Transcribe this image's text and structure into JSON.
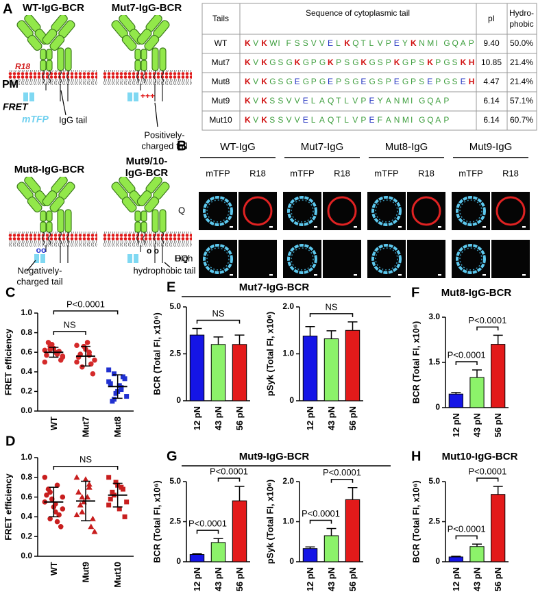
{
  "panel_a": {
    "label": "A",
    "wt": "WT-IgG-BCR",
    "mut7": "Mut7-IgG-BCR",
    "mut8": "Mut8-IgG-BCR",
    "mut910": [
      "Mut9/10-",
      "IgG-BCR"
    ],
    "r18": "R18",
    "pm": "PM",
    "fret": "FRET",
    "mtfp": "mTFP",
    "igg_tail": "IgG tail",
    "positive": [
      "Positively-",
      "charged tail"
    ],
    "negative": [
      "Negatively-",
      "charged tail"
    ],
    "hydrophobic": [
      "High",
      "hydrophobic tail"
    ]
  },
  "table": {
    "header": [
      "Tails",
      "Sequence of cytoplasmic tail",
      "pI",
      [
        "Hydro-",
        "phobic"
      ]
    ],
    "rows": [
      [
        "WT",
        "K V K W I F S S V V E L K Q T L V P E Y K N M I G Q A P",
        "9.40",
        "50.0%"
      ],
      [
        "Mut7",
        "K V K G S G K G P G K P S G K G S P K G P S K P G S K H",
        "10.85",
        "21.4%"
      ],
      [
        "Mut8",
        "K V K G S G E G P G E P S G E G S P E G P S E P G S E H",
        "4.47",
        "21.4%"
      ],
      [
        "Mut9",
        "K V K S S V V E L A Q T L V P E Y A N M I G Q A P",
        "6.14",
        "57.1%"
      ],
      [
        "Mut10",
        "K V K S S V V E L A Q T L V P E F A N M I G Q A P",
        "6.14",
        "60.7%"
      ]
    ]
  },
  "panel_b": {
    "label": "B",
    "groups": [
      "WT-IgG",
      "Mut7-IgG",
      "Mut8-IgG",
      "Mut9-IgG"
    ],
    "channels": [
      "mTFP",
      "R18"
    ],
    "rows": [
      "Q",
      "DQ"
    ]
  },
  "groups": [
    {
      "panel": "E",
      "title": "Mut7-IgG-BCR"
    },
    {
      "panel": "G",
      "title": "Mut9-IgG-BCR"
    }
  ],
  "chart_data": [
    {
      "type": "dot",
      "panel": "C",
      "ylabel": "FRET efficiency",
      "categories": [
        "WT",
        "Mut7",
        "Mut8"
      ],
      "groups": [
        {
          "values": [
            0.62,
            0.58,
            0.66,
            0.55,
            0.6,
            0.7,
            0.52,
            0.64,
            0.57,
            0.61,
            0.68,
            0.5,
            0.59,
            0.63,
            0.56
          ],
          "mean": 0.6,
          "sd": 0.05,
          "color": "#d42a2a",
          "marker": "circle"
        },
        {
          "values": [
            0.67,
            0.6,
            0.45,
            0.52,
            0.7,
            0.58,
            0.38,
            0.63,
            0.55,
            0.48,
            0.66,
            0.5,
            0.57
          ],
          "mean": 0.56,
          "sd": 0.1,
          "color": "#d42a2a",
          "marker": "circle"
        },
        {
          "values": [
            0.3,
            0.22,
            0.38,
            0.15,
            0.26,
            0.1,
            0.33,
            0.2,
            0.28,
            0.35,
            0.18,
            0.42,
            0.24,
            0.12
          ],
          "mean": 0.25,
          "sd": 0.12,
          "color": "#2030d0",
          "marker": "square"
        }
      ],
      "ylim": [
        0,
        1
      ],
      "yticks": [
        {
          "value": 0,
          "label": "0.0"
        },
        {
          "value": 0.2,
          "label": "0.2"
        },
        {
          "value": 0.4,
          "label": "0.4"
        },
        {
          "value": 0.6,
          "label": "0.6"
        },
        {
          "value": 0.8,
          "label": "0.8"
        },
        {
          "value": 1,
          "label": "1.0"
        }
      ],
      "annotations": [
        {
          "text": "NS",
          "pair": [
            "WT",
            "Mut7"
          ]
        },
        {
          "text": "P<0.0001",
          "pair": [
            "WT",
            "Mut8"
          ]
        }
      ]
    },
    {
      "type": "dot",
      "panel": "D",
      "ylabel": "FRET efficiency",
      "categories": [
        "WT",
        "Mut9",
        "Mut10"
      ],
      "groups": [
        {
          "values": [
            0.55,
            0.72,
            0.38,
            0.6,
            0.45,
            0.68,
            0.3,
            0.5,
            0.62,
            0.42,
            0.58,
            0.8,
            0.35,
            0.65,
            0.48,
            0.53
          ],
          "mean": 0.55,
          "sd": 0.15,
          "color": "#c81e1e",
          "marker": "circle"
        },
        {
          "values": [
            0.8,
            0.7,
            0.45,
            0.25,
            0.6,
            0.52,
            0.38,
            0.78,
            0.65,
            0.3,
            0.55,
            0.42,
            0.73,
            0.6
          ],
          "mean": 0.56,
          "sd": 0.2,
          "color": "#c81e1e",
          "marker": "triangle"
        },
        {
          "values": [
            0.8,
            0.7,
            0.62,
            0.55,
            0.48,
            0.65,
            0.4,
            0.72,
            0.58,
            0.68,
            0.75,
            0.52
          ],
          "mean": 0.62,
          "sd": 0.12,
          "color": "#c81e1e",
          "marker": "square"
        }
      ],
      "ylim": [
        0,
        1
      ],
      "yticks": [
        {
          "value": 0,
          "label": "0.0"
        },
        {
          "value": 0.2,
          "label": "0.2"
        },
        {
          "value": 0.4,
          "label": "0.4"
        },
        {
          "value": 0.6,
          "label": "0.6"
        },
        {
          "value": 0.8,
          "label": "0.8"
        },
        {
          "value": 1,
          "label": "1.0"
        }
      ],
      "annotations": [
        {
          "text": "NS",
          "pair": [
            "WT",
            "Mut10"
          ]
        }
      ]
    },
    {
      "type": "bar",
      "panel": "E",
      "ylabel": "BCR (Total FI, x10⁶)",
      "categories": [
        "12 pN",
        "43 pN",
        "56 pN"
      ],
      "values": [
        3.5,
        3.0,
        3.0
      ],
      "errors": [
        0.35,
        0.4,
        0.5
      ],
      "colors": [
        "#1515e6",
        "#8cf26a",
        "#e31a1a"
      ],
      "ylim": [
        0,
        5
      ],
      "yticks": [
        0,
        2.5,
        {
          "value": 5,
          "label": "5.0"
        }
      ],
      "annotations": [
        {
          "text": "NS",
          "pair": [
            "12 pN",
            "56 pN"
          ]
        }
      ]
    },
    {
      "type": "bar",
      "ylabel": "pSyk (Total FI, x10⁶)",
      "categories": [
        "12 pN",
        "43 pN",
        "56 pN"
      ],
      "values": [
        1.38,
        1.32,
        1.5
      ],
      "errors": [
        0.2,
        0.17,
        0.18
      ],
      "colors": [
        "#1515e6",
        "#8cf26a",
        "#e31a1a"
      ],
      "ylim": [
        0,
        2
      ],
      "yticks": [
        0,
        {
          "value": 1,
          "label": "1.0"
        },
        {
          "value": 2,
          "label": "2.0"
        }
      ],
      "annotations": [
        {
          "text": "NS",
          "pair": [
            "12 pN",
            "56 pN"
          ]
        }
      ]
    },
    {
      "type": "bar",
      "panel": "F",
      "title": "Mut8-IgG-BCR",
      "ylabel": "BCR (Total FI, x10⁶)",
      "categories": [
        "12 pN",
        "43 pN",
        "56 pN"
      ],
      "values": [
        0.45,
        1.0,
        2.1
      ],
      "errors": [
        0.05,
        0.25,
        0.3
      ],
      "colors": [
        "#1515e6",
        "#8cf26a",
        "#e31a1a"
      ],
      "ylim": [
        0,
        3
      ],
      "yticks": [
        0,
        1.5,
        {
          "value": 3,
          "label": "3.0"
        }
      ],
      "annotations": [
        {
          "text": "P<0.0001",
          "pair": [
            "12 pN",
            "43 pN"
          ]
        },
        {
          "text": "P<0.0001",
          "pair": [
            "43 pN",
            "56 pN"
          ]
        }
      ]
    },
    {
      "type": "bar",
      "panel": "G",
      "ylabel": "BCR (Total FI, x10⁶)",
      "categories": [
        "12 pN",
        "43 pN",
        "56 pN"
      ],
      "values": [
        0.45,
        1.2,
        3.8
      ],
      "errors": [
        0.05,
        0.25,
        0.9
      ],
      "colors": [
        "#1515e6",
        "#8cf26a",
        "#e31a1a"
      ],
      "ylim": [
        0,
        5
      ],
      "yticks": [
        0,
        2.5,
        {
          "value": 5,
          "label": "5.0"
        }
      ],
      "annotations": [
        {
          "text": "P<0.0001",
          "pair": [
            "12 pN",
            "43 pN"
          ]
        },
        {
          "text": "P<0.0001",
          "pair": [
            "43 pN",
            "56 pN"
          ]
        }
      ]
    },
    {
      "type": "bar",
      "ylabel": "pSyk (Total FI, x10⁶)",
      "categories": [
        "12 pN",
        "43 pN",
        "56 pN"
      ],
      "values": [
        0.33,
        0.65,
        1.55
      ],
      "errors": [
        0.04,
        0.18,
        0.3
      ],
      "colors": [
        "#1515e6",
        "#8cf26a",
        "#e31a1a"
      ],
      "ylim": [
        0,
        2
      ],
      "yticks": [
        0,
        {
          "value": 1,
          "label": "1.0"
        },
        {
          "value": 2,
          "label": "2.0"
        }
      ],
      "annotations": [
        {
          "text": "P<0.0001",
          "pair": [
            "12 pN",
            "43 pN"
          ]
        },
        {
          "text": "P<0.0001",
          "pair": [
            "43 pN",
            "56 pN"
          ]
        }
      ]
    },
    {
      "type": "bar",
      "panel": "H",
      "title": "Mut10-IgG-BCR",
      "ylabel": "BCR (Total FI, x10⁶)",
      "categories": [
        "12 pN",
        "43 pN",
        "56 pN"
      ],
      "values": [
        0.3,
        0.95,
        4.2
      ],
      "errors": [
        0.04,
        0.15,
        0.5
      ],
      "colors": [
        "#1515e6",
        "#8cf26a",
        "#e31a1a"
      ],
      "ylim": [
        0,
        5
      ],
      "yticks": [
        0,
        2.5,
        {
          "value": 5,
          "label": "5.0"
        }
      ],
      "annotations": [
        {
          "text": "P<0.0001",
          "pair": [
            "12 pN",
            "43 pN"
          ]
        },
        {
          "text": "P<0.0001",
          "pair": [
            "43 pN",
            "56 pN"
          ]
        }
      ]
    }
  ]
}
